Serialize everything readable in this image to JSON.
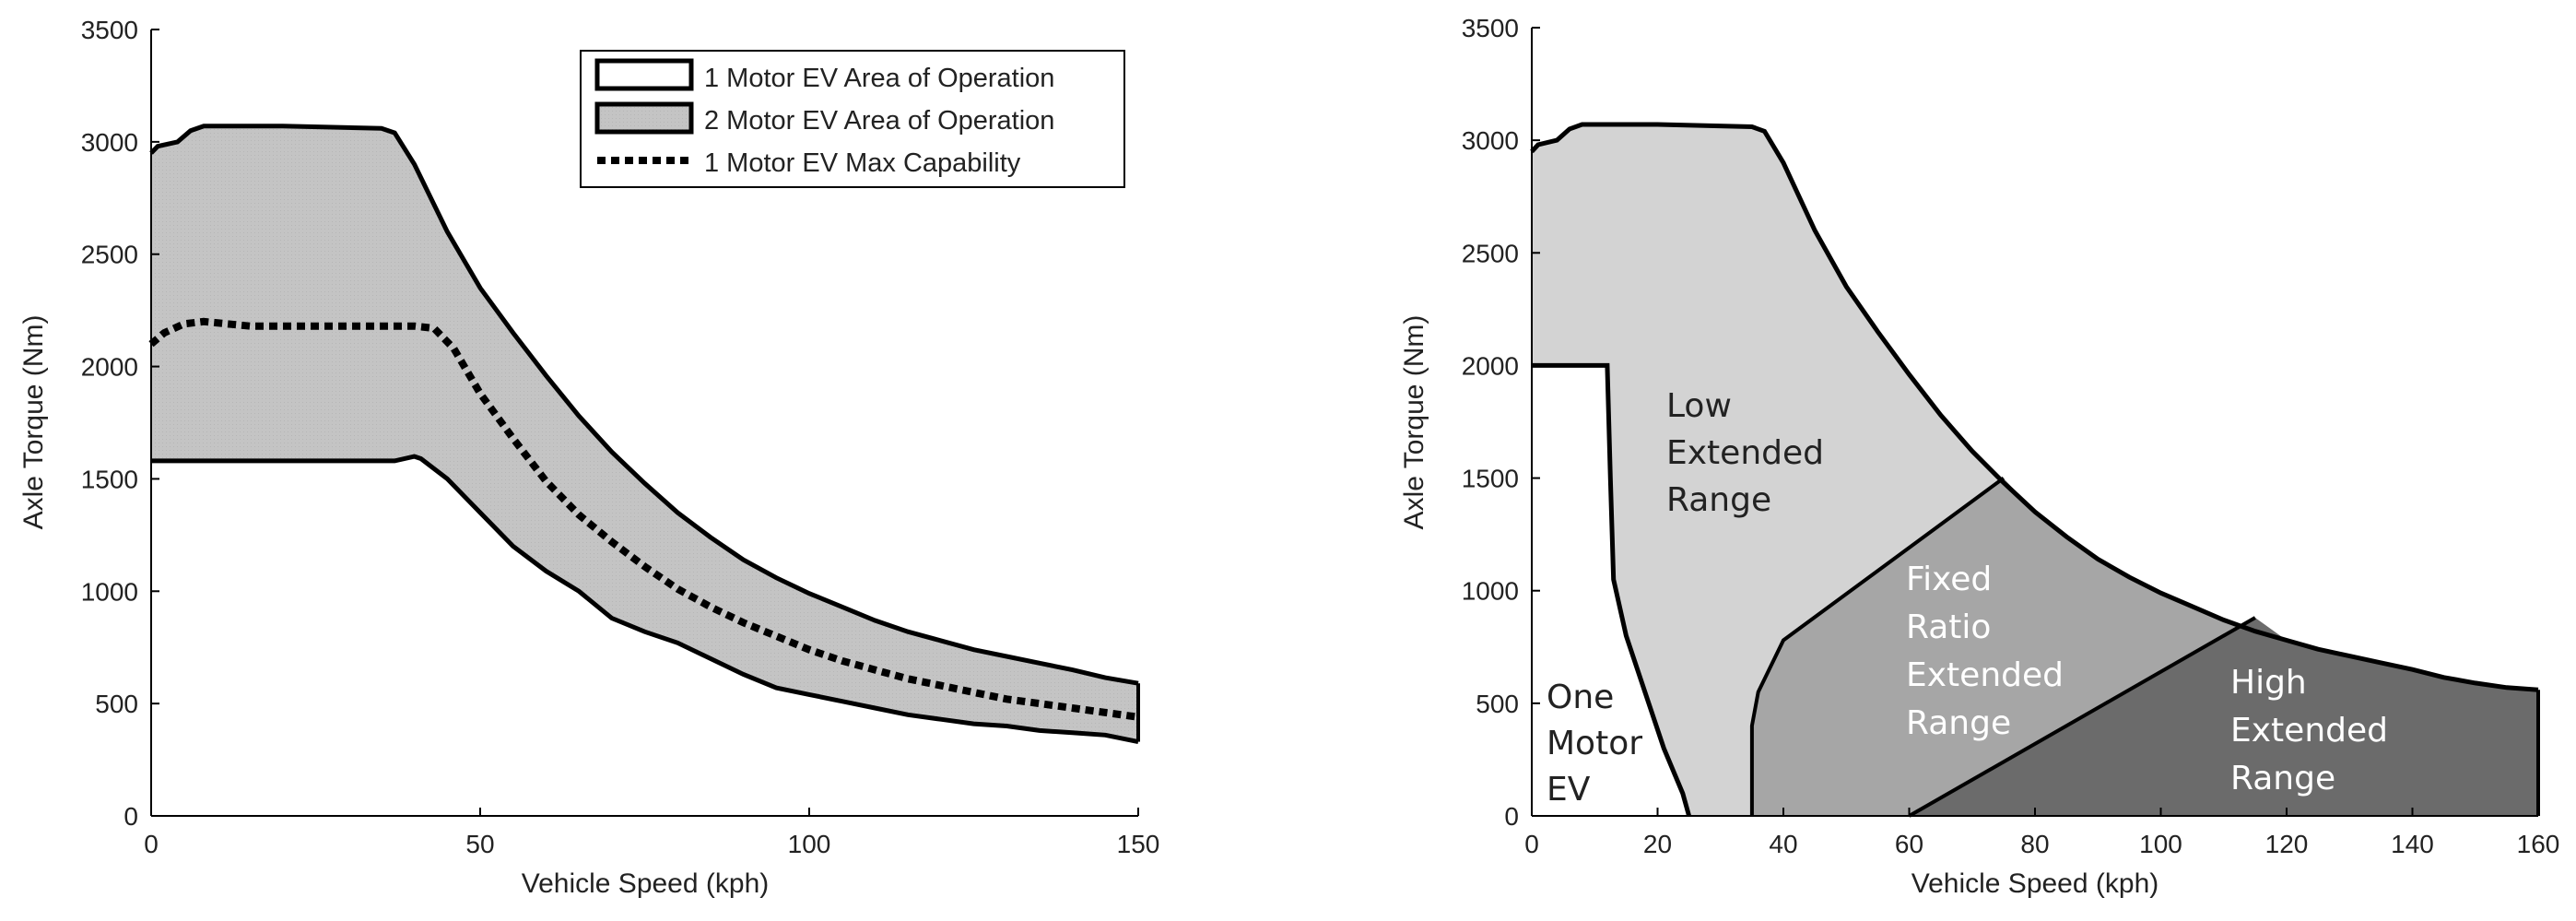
{
  "chart_data": [
    {
      "type": "area",
      "xlabel": "Vehicle Speed (kph)",
      "ylabel": "Axle Torque (Nm)",
      "xlim": [
        0,
        150
      ],
      "ylim": [
        0,
        3500
      ],
      "xticks": [
        "0",
        "50",
        "100",
        "150"
      ],
      "yticks": [
        "0",
        "500",
        "1000",
        "1500",
        "2000",
        "2500",
        "3000",
        "3500"
      ],
      "legend": {
        "placement": "top-right",
        "entries": [
          "1 Motor EV Area of Operation",
          "2 Motor EV Area of Operation",
          "1 Motor EV Max Capability"
        ]
      },
      "series": [
        {
          "name": "2 Motor EV Upper Boundary",
          "x": [
            0,
            1,
            4,
            6,
            8,
            20,
            35,
            37,
            40,
            45,
            50,
            55,
            60,
            65,
            70,
            75,
            80,
            85,
            90,
            95,
            100,
            105,
            110,
            115,
            120,
            125,
            130,
            135,
            140,
            145,
            150
          ],
          "y": [
            2950,
            2980,
            3000,
            3050,
            3070,
            3070,
            3060,
            3040,
            2900,
            2600,
            2350,
            2150,
            1960,
            1780,
            1620,
            1480,
            1350,
            1240,
            1140,
            1060,
            990,
            930,
            870,
            820,
            780,
            740,
            710,
            680,
            650,
            615,
            590
          ]
        },
        {
          "name": "2 Motor EV Lower Boundary",
          "x": [
            0,
            20,
            37,
            40,
            41,
            45,
            50,
            55,
            60,
            65,
            70,
            75,
            80,
            85,
            90,
            95,
            100,
            105,
            110,
            115,
            120,
            125,
            130,
            135,
            140,
            145,
            150
          ],
          "y": [
            1580,
            1580,
            1580,
            1600,
            1590,
            1500,
            1350,
            1200,
            1090,
            1000,
            880,
            820,
            770,
            700,
            630,
            570,
            540,
            510,
            480,
            450,
            430,
            410,
            400,
            380,
            370,
            360,
            330
          ]
        },
        {
          "name": "1 Motor EV Max Capability",
          "x": [
            0,
            2,
            5,
            8,
            15,
            40,
            43,
            46,
            50,
            55,
            60,
            65,
            70,
            75,
            80,
            85,
            90,
            95,
            100,
            105,
            110,
            115,
            120,
            125,
            130,
            135,
            140,
            145,
            150
          ],
          "y": [
            2100,
            2150,
            2190,
            2200,
            2180,
            2180,
            2170,
            2080,
            1880,
            1680,
            1490,
            1340,
            1220,
            1110,
            1010,
            930,
            860,
            800,
            740,
            690,
            650,
            610,
            580,
            550,
            520,
            500,
            480,
            460,
            440
          ]
        }
      ]
    },
    {
      "type": "area",
      "xlabel": "Vehicle Speed (kph)",
      "ylabel": "Axle Torque (Nm)",
      "xlim": [
        0,
        160
      ],
      "ylim": [
        0,
        3500
      ],
      "xticks": [
        "0",
        "20",
        "40",
        "60",
        "80",
        "100",
        "120",
        "140",
        "160"
      ],
      "yticks": [
        "0",
        "500",
        "1000",
        "1500",
        "2000",
        "2500",
        "3000",
        "3500"
      ],
      "regions": [
        {
          "name": "One Motor EV",
          "lines": [
            "One",
            "Motor",
            "EV"
          ],
          "color": "#ffffff"
        },
        {
          "name": "Low Extended Range",
          "lines": [
            "Low",
            "Extended",
            "Range"
          ],
          "color": "#d3d3d3"
        },
        {
          "name": "Fixed Ratio Extended Range",
          "lines": [
            "Fixed",
            "Ratio",
            "Extended",
            "Range"
          ],
          "color": "#a6a6a6"
        },
        {
          "name": "High Extended Range",
          "lines": [
            "High",
            "Extended",
            "Range"
          ],
          "color": "#6b6b6b"
        }
      ],
      "envelope": {
        "x": [
          0,
          1,
          4,
          6,
          8,
          20,
          35,
          37,
          40,
          45,
          50,
          55,
          60,
          65,
          70,
          75,
          80,
          85,
          90,
          95,
          100,
          105,
          110,
          115,
          120,
          125,
          130,
          135,
          140,
          145,
          150,
          155,
          160
        ],
        "y": [
          2950,
          2980,
          3000,
          3050,
          3070,
          3070,
          3060,
          3040,
          2900,
          2600,
          2350,
          2150,
          1960,
          1780,
          1620,
          1480,
          1350,
          1240,
          1140,
          1060,
          990,
          930,
          870,
          820,
          780,
          740,
          710,
          680,
          650,
          615,
          590,
          570,
          560
        ]
      },
      "one_motor_boundary": {
        "x": [
          0,
          12,
          12.5,
          13,
          15,
          18,
          21,
          24,
          25
        ],
        "y": [
          2000,
          2000,
          1500,
          1050,
          800,
          550,
          300,
          100,
          0
        ]
      },
      "low_boundary": {
        "x": [
          35,
          35,
          36,
          40,
          75
        ],
        "y": [
          0,
          400,
          550,
          780,
          1500
        ]
      },
      "high_boundary": {
        "x": [
          60,
          115
        ],
        "y": [
          0,
          880
        ]
      }
    }
  ]
}
